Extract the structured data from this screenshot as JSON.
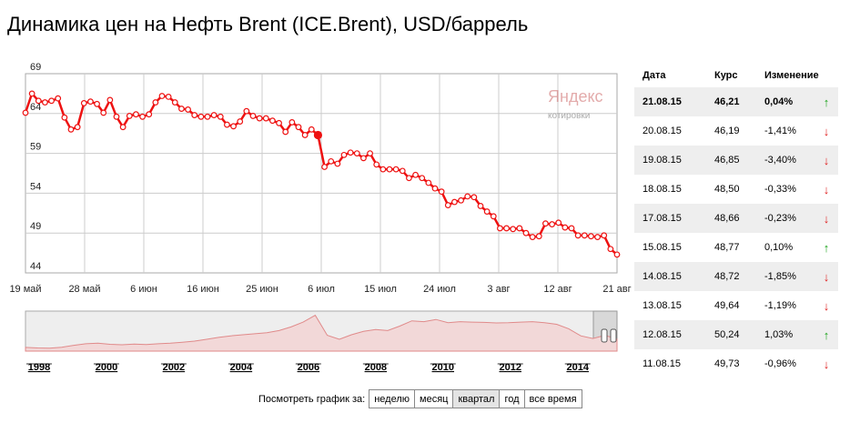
{
  "title": "Динамика цен на Нефть Brent (ICE.Brent), USD/баррель",
  "chart_data": {
    "type": "line",
    "title": "Динамика цен на Нефть Brent (ICE.Brent), USD/баррель",
    "xlabel": "",
    "ylabel": "",
    "ylim": [
      44,
      69
    ],
    "y_ticks": [
      "69",
      "64",
      "59",
      "54",
      "49",
      "44"
    ],
    "x_ticks": [
      "19 май",
      "28 май",
      "6 июн",
      "16 июн",
      "25 июн",
      "6 июл",
      "15 июл",
      "24 июл",
      "3 авг",
      "12 авг",
      "21 авг"
    ],
    "grid": true,
    "line_color": "#ee1111",
    "values": [
      64.1,
      66.5,
      65.6,
      65.4,
      65.6,
      65.9,
      63.5,
      62.0,
      62.3,
      65.3,
      65.5,
      65.2,
      64.1,
      65.7,
      63.6,
      62.3,
      63.7,
      63.9,
      63.6,
      63.9,
      65.4,
      66.2,
      66.1,
      65.4,
      64.6,
      64.5,
      63.8,
      63.6,
      63.6,
      63.8,
      63.6,
      62.6,
      62.4,
      63.0,
      64.3,
      63.7,
      63.4,
      63.4,
      63.1,
      62.8,
      61.7,
      62.9,
      62.3,
      61.3,
      62.0,
      61.3,
      57.3,
      58.0,
      57.7,
      58.8,
      59.1,
      59.0,
      58.4,
      59.0,
      57.6,
      57.0,
      57.0,
      57.0,
      56.8,
      55.9,
      56.3,
      55.9,
      55.3,
      54.6,
      54.2,
      52.5,
      52.9,
      53.1,
      53.6,
      53.5,
      52.4,
      51.7,
      51.1,
      49.6,
      49.6,
      49.5,
      49.6,
      49.0,
      48.5,
      48.6,
      50.2,
      50.1,
      50.3,
      49.7,
      49.6,
      48.7,
      48.7,
      48.6,
      48.5,
      48.7,
      47.0,
      46.3
    ],
    "markers": true,
    "highlight_index": 45,
    "watermark_logo": "Яндекс",
    "watermark_sub": "котировки",
    "overview": {
      "type": "area",
      "x_ticks": [
        "1998",
        "2000",
        "2002",
        "2004",
        "2006",
        "2008",
        "2010",
        "2012",
        "2014"
      ],
      "values": [
        14,
        12,
        11,
        15,
        22,
        28,
        30,
        26,
        24,
        27,
        25,
        28,
        30,
        34,
        38,
        45,
        52,
        58,
        62,
        66,
        70,
        78,
        92,
        110,
        136,
        60,
        45,
        62,
        75,
        82,
        78,
        95,
        115,
        112,
        120,
        108,
        112,
        110,
        109,
        107,
        108,
        110,
        112,
        108,
        102,
        85,
        58,
        48,
        60,
        46
      ],
      "fill_color": "#f2d8d8",
      "line_color": "#e08a8a"
    }
  },
  "table": {
    "headers": [
      "Дата",
      "Курс",
      "Изменение"
    ],
    "rows": [
      {
        "date": "21.08.15",
        "rate": "46,21",
        "change": "0,04%",
        "arrow": "↑",
        "dir": "up"
      },
      {
        "date": "20.08.15",
        "rate": "46,19",
        "change": "-1,41%",
        "arrow": "↓",
        "dir": "down"
      },
      {
        "date": "19.08.15",
        "rate": "46,85",
        "change": "-3,40%",
        "arrow": "↓",
        "dir": "down"
      },
      {
        "date": "18.08.15",
        "rate": "48,50",
        "change": "-0,33%",
        "arrow": "↓",
        "dir": "down"
      },
      {
        "date": "17.08.15",
        "rate": "48,66",
        "change": "-0,23%",
        "arrow": "↓",
        "dir": "down"
      },
      {
        "date": "15.08.15",
        "rate": "48,77",
        "change": "0,10%",
        "arrow": "↑",
        "dir": "up"
      },
      {
        "date": "14.08.15",
        "rate": "48,72",
        "change": "-1,85%",
        "arrow": "↓",
        "dir": "down"
      },
      {
        "date": "13.08.15",
        "rate": "49,64",
        "change": "-1,19%",
        "arrow": "↓",
        "dir": "down"
      },
      {
        "date": "12.08.15",
        "rate": "50,24",
        "change": "1,03%",
        "arrow": "↑",
        "dir": "up"
      },
      {
        "date": "11.08.15",
        "rate": "49,73",
        "change": "-0,96%",
        "arrow": "↓",
        "dir": "down"
      }
    ]
  },
  "period": {
    "label": "Посмотреть график за:",
    "buttons": [
      "неделю",
      "месяц",
      "квартал",
      "год",
      "все время"
    ],
    "active": "квартал"
  }
}
